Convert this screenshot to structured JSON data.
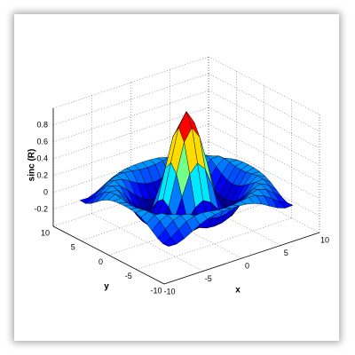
{
  "chart_data": {
    "type": "surface",
    "z_label": "sinc (R)",
    "x_label": "x",
    "y_label": "y",
    "x": [
      -8,
      -7,
      -6,
      -5,
      -4,
      -3,
      -2,
      -1,
      0,
      1,
      2,
      3,
      4,
      5,
      6,
      7,
      8
    ],
    "y": [
      -8,
      -7,
      -6,
      -5,
      -4,
      -3,
      -2,
      -1,
      0,
      1,
      2,
      3,
      4,
      5,
      6,
      7,
      8
    ],
    "z": [
      [
        -0.084,
        -0.088,
        -0.054,
        -0.001,
        0.052,
        0.09,
        0.112,
        0.121,
        0.124,
        0.121,
        0.112,
        0.09,
        0.052,
        -0.001,
        -0.054,
        -0.088,
        -0.084
      ],
      [
        -0.088,
        -0.046,
        0.022,
        0.085,
        0.121,
        0.128,
        0.115,
        0.1,
        0.094,
        0.1,
        0.115,
        0.128,
        0.121,
        0.085,
        0.022,
        -0.046,
        -0.088
      ],
      [
        -0.054,
        0.022,
        0.095,
        0.128,
        0.111,
        0.061,
        0.007,
        -0.033,
        -0.047,
        -0.033,
        0.007,
        0.061,
        0.111,
        0.128,
        0.095,
        0.022,
        -0.054
      ],
      [
        -0.001,
        0.085,
        0.128,
        0.1,
        0.019,
        -0.075,
        -0.145,
        -0.182,
        -0.192,
        -0.182,
        -0.145,
        -0.075,
        0.019,
        0.1,
        0.128,
        0.085,
        -0.001
      ],
      [
        0.052,
        0.121,
        0.111,
        0.019,
        -0.104,
        -0.192,
        -0.217,
        -0.202,
        -0.189,
        -0.202,
        -0.217,
        -0.192,
        -0.104,
        0.019,
        0.111,
        0.121,
        0.052
      ],
      [
        0.09,
        0.128,
        0.061,
        -0.075,
        -0.192,
        -0.21,
        -0.124,
        -0.007,
        0.047,
        -0.007,
        -0.124,
        -0.21,
        -0.192,
        -0.075,
        0.061,
        0.128,
        0.09
      ],
      [
        0.112,
        0.115,
        0.007,
        -0.145,
        -0.217,
        -0.124,
        0.109,
        0.352,
        0.455,
        0.352,
        0.109,
        -0.124,
        -0.217,
        -0.145,
        0.007,
        0.115,
        0.112
      ],
      [
        0.121,
        0.1,
        -0.033,
        -0.182,
        -0.202,
        -0.007,
        0.352,
        0.698,
        0.841,
        0.698,
        0.352,
        -0.007,
        -0.202,
        -0.182,
        -0.033,
        0.1,
        0.121
      ],
      [
        0.124,
        0.094,
        -0.047,
        -0.192,
        -0.189,
        0.047,
        0.455,
        0.841,
        1,
        0.841,
        0.455,
        0.047,
        -0.189,
        -0.192,
        -0.047,
        0.094,
        0.124
      ],
      [
        0.121,
        0.1,
        -0.033,
        -0.182,
        -0.202,
        -0.007,
        0.352,
        0.698,
        0.841,
        0.698,
        0.352,
        -0.007,
        -0.202,
        -0.182,
        -0.033,
        0.1,
        0.121
      ],
      [
        0.112,
        0.115,
        0.007,
        -0.145,
        -0.217,
        -0.124,
        0.109,
        0.352,
        0.455,
        0.352,
        0.109,
        -0.124,
        -0.217,
        -0.145,
        0.007,
        0.115,
        0.112
      ],
      [
        0.09,
        0.128,
        0.061,
        -0.075,
        -0.192,
        -0.21,
        -0.124,
        -0.007,
        0.047,
        -0.007,
        -0.124,
        -0.21,
        -0.192,
        -0.075,
        0.061,
        0.128,
        0.09
      ],
      [
        0.052,
        0.121,
        0.111,
        0.019,
        -0.104,
        -0.192,
        -0.217,
        -0.202,
        -0.189,
        -0.202,
        -0.217,
        -0.192,
        -0.104,
        0.019,
        0.111,
        0.121,
        0.052
      ],
      [
        -0.001,
        0.085,
        0.128,
        0.1,
        0.019,
        -0.075,
        -0.145,
        -0.182,
        -0.192,
        -0.182,
        -0.145,
        -0.075,
        0.019,
        0.1,
        0.128,
        0.085,
        -0.001
      ],
      [
        -0.054,
        0.022,
        0.095,
        0.128,
        0.111,
        0.061,
        0.007,
        -0.033,
        -0.047,
        -0.033,
        0.007,
        0.061,
        0.111,
        0.128,
        0.095,
        0.022,
        -0.054
      ],
      [
        -0.088,
        -0.046,
        0.022,
        0.085,
        0.121,
        0.128,
        0.115,
        0.1,
        0.094,
        0.1,
        0.115,
        0.128,
        0.121,
        0.085,
        0.022,
        -0.046,
        -0.088
      ],
      [
        -0.084,
        -0.088,
        -0.054,
        -0.001,
        0.052,
        0.09,
        0.112,
        0.121,
        0.124,
        0.121,
        0.112,
        0.09,
        0.052,
        -0.001,
        -0.054,
        -0.088,
        -0.084
      ]
    ],
    "xlim": [
      -10,
      10
    ],
    "ylim": [
      -10,
      10
    ],
    "zlim": [
      -0.4,
      1
    ],
    "xticks": [
      -10,
      -5,
      0,
      5,
      10
    ],
    "yticks": [
      -10,
      -5,
      0,
      5,
      10
    ],
    "zticks": [
      -0.2,
      0,
      0.2,
      0.4,
      0.6,
      0.8
    ],
    "colormap": "jet",
    "grid": true
  }
}
